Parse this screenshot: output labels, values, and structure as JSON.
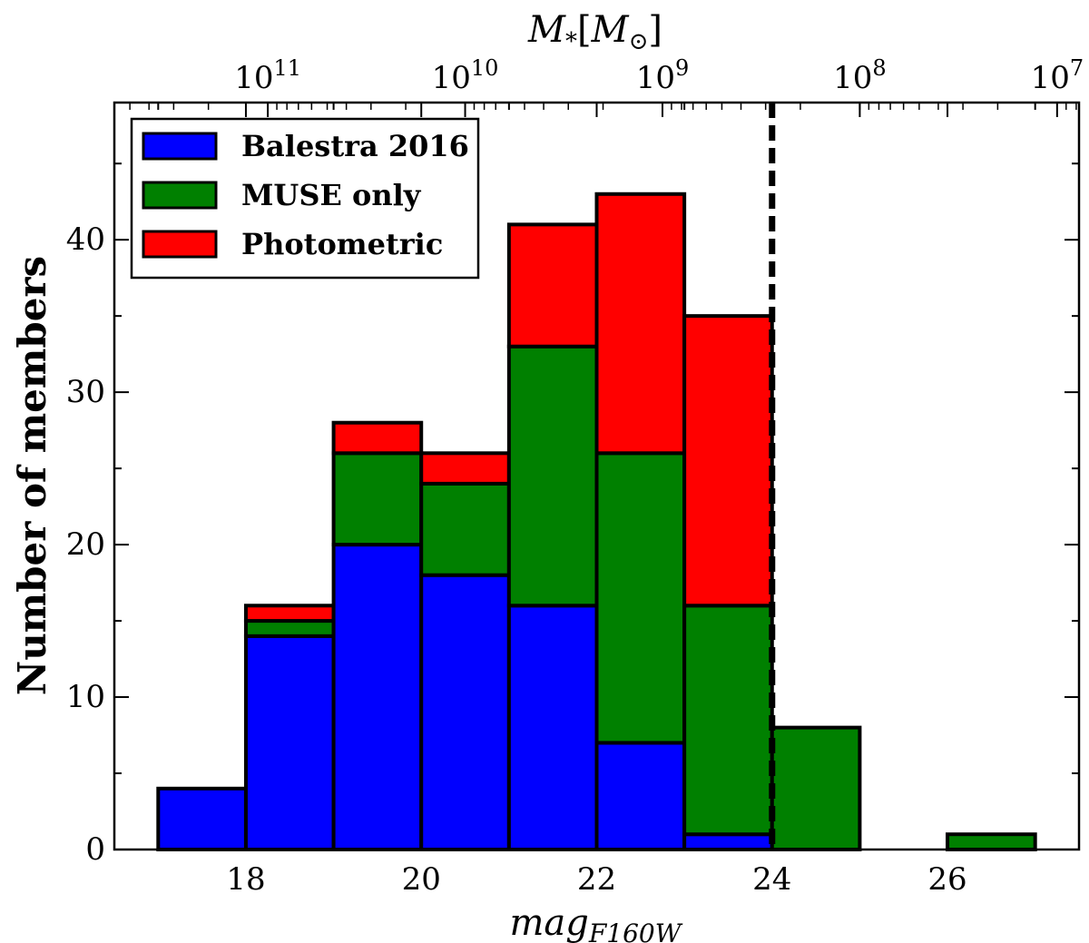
{
  "chart_data": {
    "type": "bar",
    "stacked": true,
    "bin_edges": [
      17,
      18,
      19,
      20,
      21,
      22,
      23,
      24,
      25,
      26,
      27
    ],
    "series": [
      {
        "name": "Balestra 2016",
        "color": "#0000ff",
        "values": [
          4,
          14,
          20,
          18,
          16,
          7,
          1,
          0,
          0,
          0
        ]
      },
      {
        "name": "MUSE only",
        "color": "#008000",
        "values": [
          0,
          1,
          6,
          6,
          17,
          19,
          15,
          8,
          0,
          1
        ]
      },
      {
        "name": "Photometric",
        "color": "#ff0000",
        "values": [
          0,
          1,
          2,
          2,
          8,
          17,
          19,
          0,
          0,
          0
        ]
      }
    ],
    "xlabel": "mag",
    "xlabel_sub": "F160W",
    "ylabel": "Number of members",
    "xlim": [
      16.5,
      27.5
    ],
    "ylim": [
      0,
      49
    ],
    "xticks": [
      18,
      20,
      22,
      24,
      26
    ],
    "yticks": [
      0,
      10,
      20,
      30,
      40
    ],
    "vline": {
      "x": 24,
      "style": "dashed",
      "color": "#000000"
    },
    "top_axis": {
      "label_main": "M",
      "label_sub": "*",
      "label_bracket_open": "[",
      "label_unit": "M",
      "label_unit_sub": "⊙",
      "label_bracket_close": "]",
      "major_ticks": [
        {
          "exp": 11,
          "mag": 18.25
        },
        {
          "exp": 10,
          "mag": 20.5
        },
        {
          "exp": 9,
          "mag": 22.75
        },
        {
          "exp": 8,
          "mag": 25.0
        },
        {
          "exp": 7,
          "mag": 27.25
        }
      ],
      "base_text": "10",
      "mag_per_decade": 2.25
    },
    "legend": {
      "position": "top-left"
    }
  }
}
